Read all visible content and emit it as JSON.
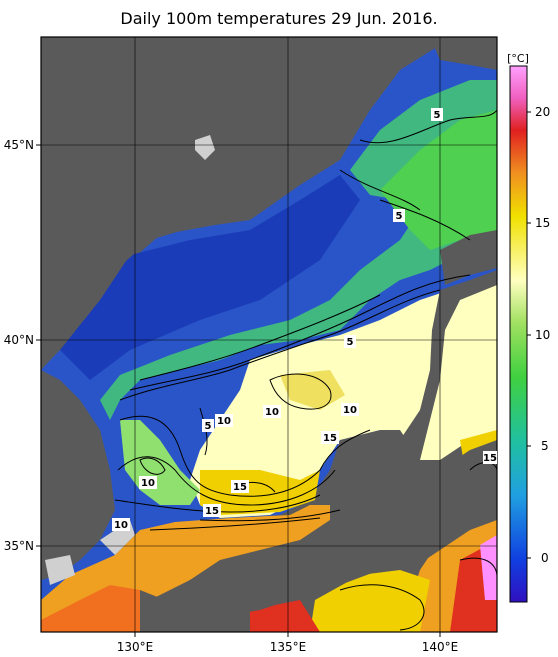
{
  "title": "Daily 100m temperatures 29 Jun. 2016.",
  "map": {
    "lon_ticks": [
      "130°E",
      "135°E",
      "140°E"
    ],
    "lat_ticks": [
      "45°N",
      "40°N",
      "35°N"
    ]
  },
  "colorbar": {
    "unit": "[°C]",
    "ticks": [
      "20",
      "15",
      "10",
      "5",
      "0"
    ]
  },
  "contour_labels": [
    "5",
    "5",
    "5",
    "10",
    "10",
    "10",
    "10",
    "15",
    "15",
    "15",
    "15",
    "10",
    "5"
  ],
  "colors": {
    "land": "#5a5a5a",
    "nodata": "#d0d0d0",
    "cold": "#1f48c8",
    "warm": "#f07020"
  }
}
